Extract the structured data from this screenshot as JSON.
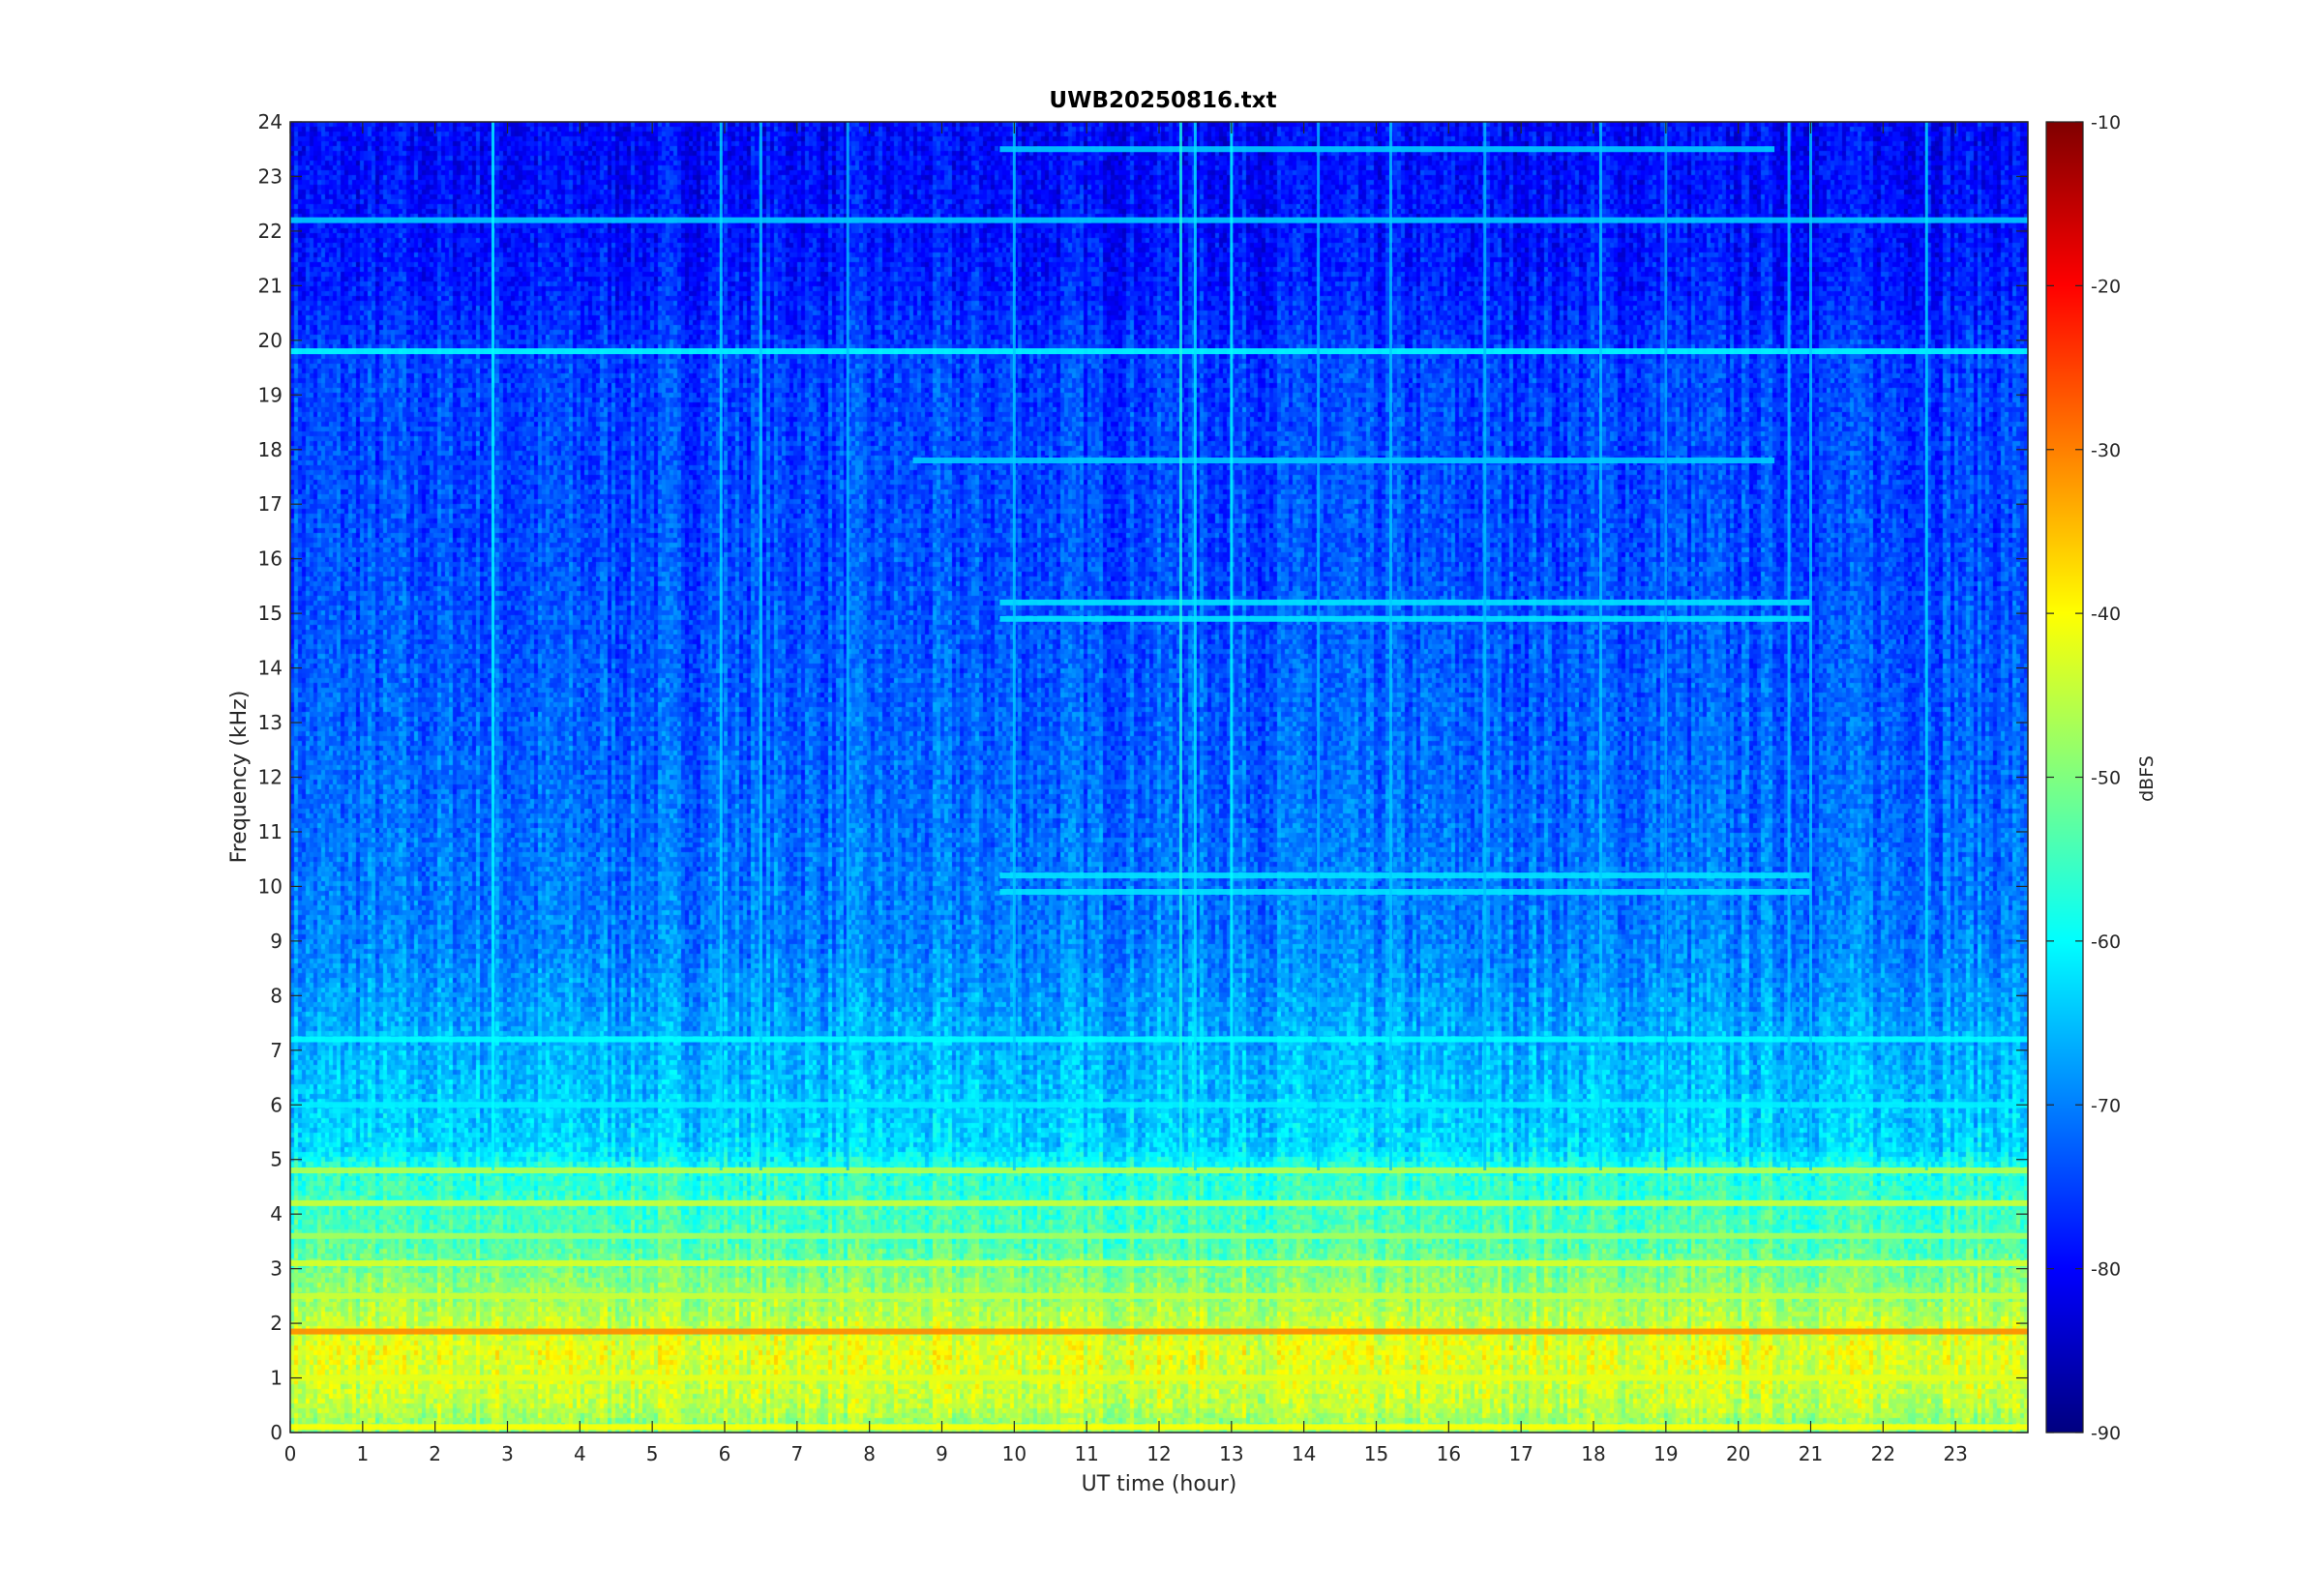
{
  "chart_data": {
    "type": "heatmap",
    "title": "UWB20250816.txt",
    "xlabel": "UT time (hour)",
    "ylabel": "Frequency (kHz)",
    "xlim": [
      0,
      24
    ],
    "ylim": [
      0,
      24
    ],
    "x_ticks": [
      0,
      1,
      2,
      3,
      4,
      5,
      6,
      7,
      8,
      9,
      10,
      11,
      12,
      13,
      14,
      15,
      16,
      17,
      18,
      19,
      20,
      21,
      22,
      23
    ],
    "y_ticks": [
      0,
      1,
      2,
      3,
      4,
      5,
      6,
      7,
      8,
      9,
      10,
      11,
      12,
      13,
      14,
      15,
      16,
      17,
      18,
      19,
      20,
      21,
      22,
      23,
      24
    ],
    "colormap": "jet",
    "colorbar": {
      "label": "dBFS",
      "clim": [
        -90,
        -10
      ],
      "ticks": [
        -90,
        -80,
        -70,
        -60,
        -50,
        -40,
        -30,
        -20,
        -10
      ]
    },
    "grid": false,
    "background_level_by_frequency": [
      {
        "freq_khz": 0,
        "dbfs": -50
      },
      {
        "freq_khz": 0.5,
        "dbfs": -45
      },
      {
        "freq_khz": 1.5,
        "dbfs": -42
      },
      {
        "freq_khz": 2.5,
        "dbfs": -48
      },
      {
        "freq_khz": 3.5,
        "dbfs": -54
      },
      {
        "freq_khz": 4.8,
        "dbfs": -57
      },
      {
        "freq_khz": 5.2,
        "dbfs": -63
      },
      {
        "freq_khz": 7,
        "dbfs": -66
      },
      {
        "freq_khz": 9,
        "dbfs": -70
      },
      {
        "freq_khz": 12,
        "dbfs": -72
      },
      {
        "freq_khz": 16,
        "dbfs": -74
      },
      {
        "freq_khz": 19.6,
        "dbfs": -75
      },
      {
        "freq_khz": 21,
        "dbfs": -78
      },
      {
        "freq_khz": 24,
        "dbfs": -80
      }
    ],
    "horizontal_bands": [
      {
        "freq_khz": 19.8,
        "dbfs": -60,
        "t_start": 0,
        "t_end": 24
      },
      {
        "freq_khz": 22.2,
        "dbfs": -64,
        "t_start": 0,
        "t_end": 24
      },
      {
        "freq_khz": 23.5,
        "dbfs": -64,
        "t_start": 9.8,
        "t_end": 20.5
      },
      {
        "freq_khz": 17.8,
        "dbfs": -64,
        "t_start": 8.6,
        "t_end": 20.5
      },
      {
        "freq_khz": 15.2,
        "dbfs": -62,
        "t_start": 9.8,
        "t_end": 21
      },
      {
        "freq_khz": 14.9,
        "dbfs": -62,
        "t_start": 9.8,
        "t_end": 21
      },
      {
        "freq_khz": 10.2,
        "dbfs": -62,
        "t_start": 9.8,
        "t_end": 21
      },
      {
        "freq_khz": 9.9,
        "dbfs": -62,
        "t_start": 9.8,
        "t_end": 21
      },
      {
        "freq_khz": 6.0,
        "dbfs": -61,
        "t_start": 0,
        "t_end": 24
      },
      {
        "freq_khz": 7.2,
        "dbfs": -60,
        "t_start": 0,
        "t_end": 24
      },
      {
        "freq_khz": 4.8,
        "dbfs": -46,
        "t_start": 0,
        "t_end": 24
      },
      {
        "freq_khz": 4.2,
        "dbfs": -44,
        "t_start": 0,
        "t_end": 24
      },
      {
        "freq_khz": 3.6,
        "dbfs": -47,
        "t_start": 0,
        "t_end": 24
      },
      {
        "freq_khz": 3.1,
        "dbfs": -43,
        "t_start": 0,
        "t_end": 24
      },
      {
        "freq_khz": 2.5,
        "dbfs": -44,
        "t_start": 0,
        "t_end": 24
      },
      {
        "freq_khz": 1.85,
        "dbfs": -31,
        "t_start": 0,
        "t_end": 24
      },
      {
        "freq_khz": 1.0,
        "dbfs": -42,
        "t_start": 0,
        "t_end": 24
      },
      {
        "freq_khz": 0.1,
        "dbfs": -40,
        "t_start": 0,
        "t_end": 24
      }
    ],
    "vertical_lines": [
      {
        "time_hour": 2.8,
        "dbfs": -60
      },
      {
        "time_hour": 5.95,
        "dbfs": -62
      },
      {
        "time_hour": 6.5,
        "dbfs": -64
      },
      {
        "time_hour": 7.7,
        "dbfs": -65
      },
      {
        "time_hour": 10.0,
        "dbfs": -64
      },
      {
        "time_hour": 12.3,
        "dbfs": -58
      },
      {
        "time_hour": 12.5,
        "dbfs": -62
      },
      {
        "time_hour": 13.0,
        "dbfs": -60
      },
      {
        "time_hour": 14.2,
        "dbfs": -65
      },
      {
        "time_hour": 15.2,
        "dbfs": -64
      },
      {
        "time_hour": 16.5,
        "dbfs": -65
      },
      {
        "time_hour": 18.1,
        "dbfs": -64
      },
      {
        "time_hour": 19.0,
        "dbfs": -66
      },
      {
        "time_hour": 20.7,
        "dbfs": -64
      },
      {
        "time_hour": 21.0,
        "dbfs": -64
      },
      {
        "time_hour": 22.6,
        "dbfs": -62
      }
    ]
  }
}
